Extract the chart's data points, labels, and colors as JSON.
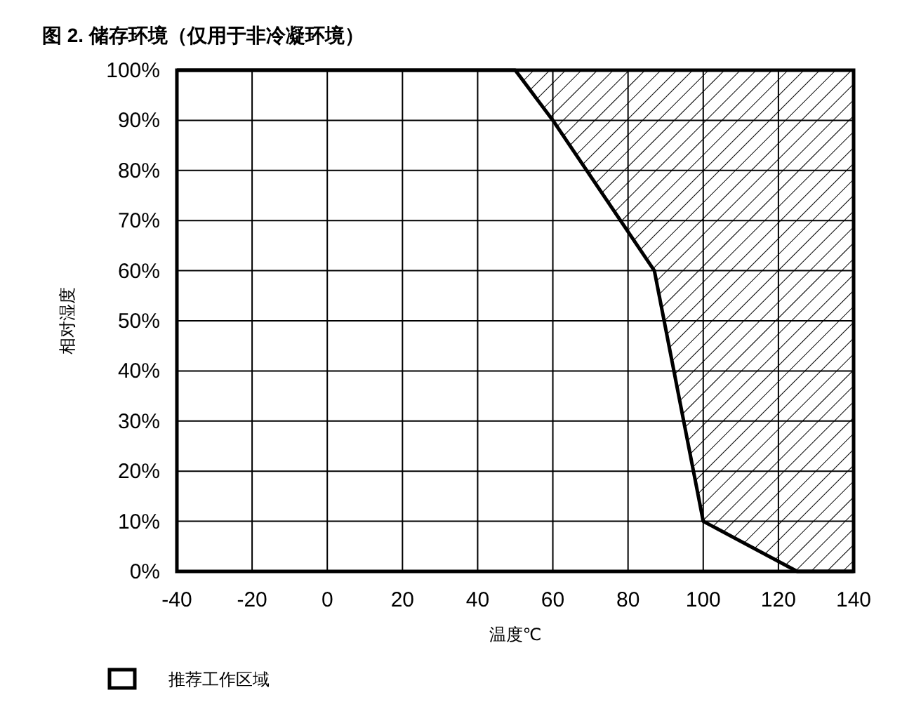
{
  "chart_data": {
    "type": "area",
    "title": "图 2. 储存环境（仅用于非冷凝环境）",
    "xlabel": "温度℃",
    "ylabel": "相对湿度",
    "stacked": true,
    "x": [
      -40,
      50,
      60,
      87,
      100,
      125,
      140
    ],
    "series": [
      {
        "name": "推荐工作区域",
        "color": "#ffffff",
        "values": [
          100,
          100,
          90,
          60,
          10,
          0,
          0
        ]
      },
      {
        "color": "#000000",
        "values": [
          null,
          0,
          10,
          40,
          90,
          100,
          100
        ]
      }
    ],
    "xlim": [
      -40,
      140
    ],
    "xticks": [
      -40,
      -20,
      0,
      20,
      40,
      60,
      80,
      100,
      120,
      140
    ],
    "ylim": [
      0,
      100
    ],
    "yticks": [
      {
        "value": 0,
        "label": "0%"
      },
      {
        "value": 10,
        "label": "10%"
      },
      {
        "value": 20,
        "label": "20%"
      },
      {
        "value": 30,
        "label": "30%"
      },
      {
        "value": 40,
        "label": "40%"
      },
      {
        "value": 50,
        "label": "50%"
      },
      {
        "value": 60,
        "label": "60%"
      },
      {
        "value": 70,
        "label": "70%"
      },
      {
        "value": 80,
        "label": "80%"
      },
      {
        "value": 90,
        "label": "90%"
      },
      {
        "value": 100,
        "label": "100%"
      }
    ],
    "grid": true,
    "legend": "bottom left"
  }
}
